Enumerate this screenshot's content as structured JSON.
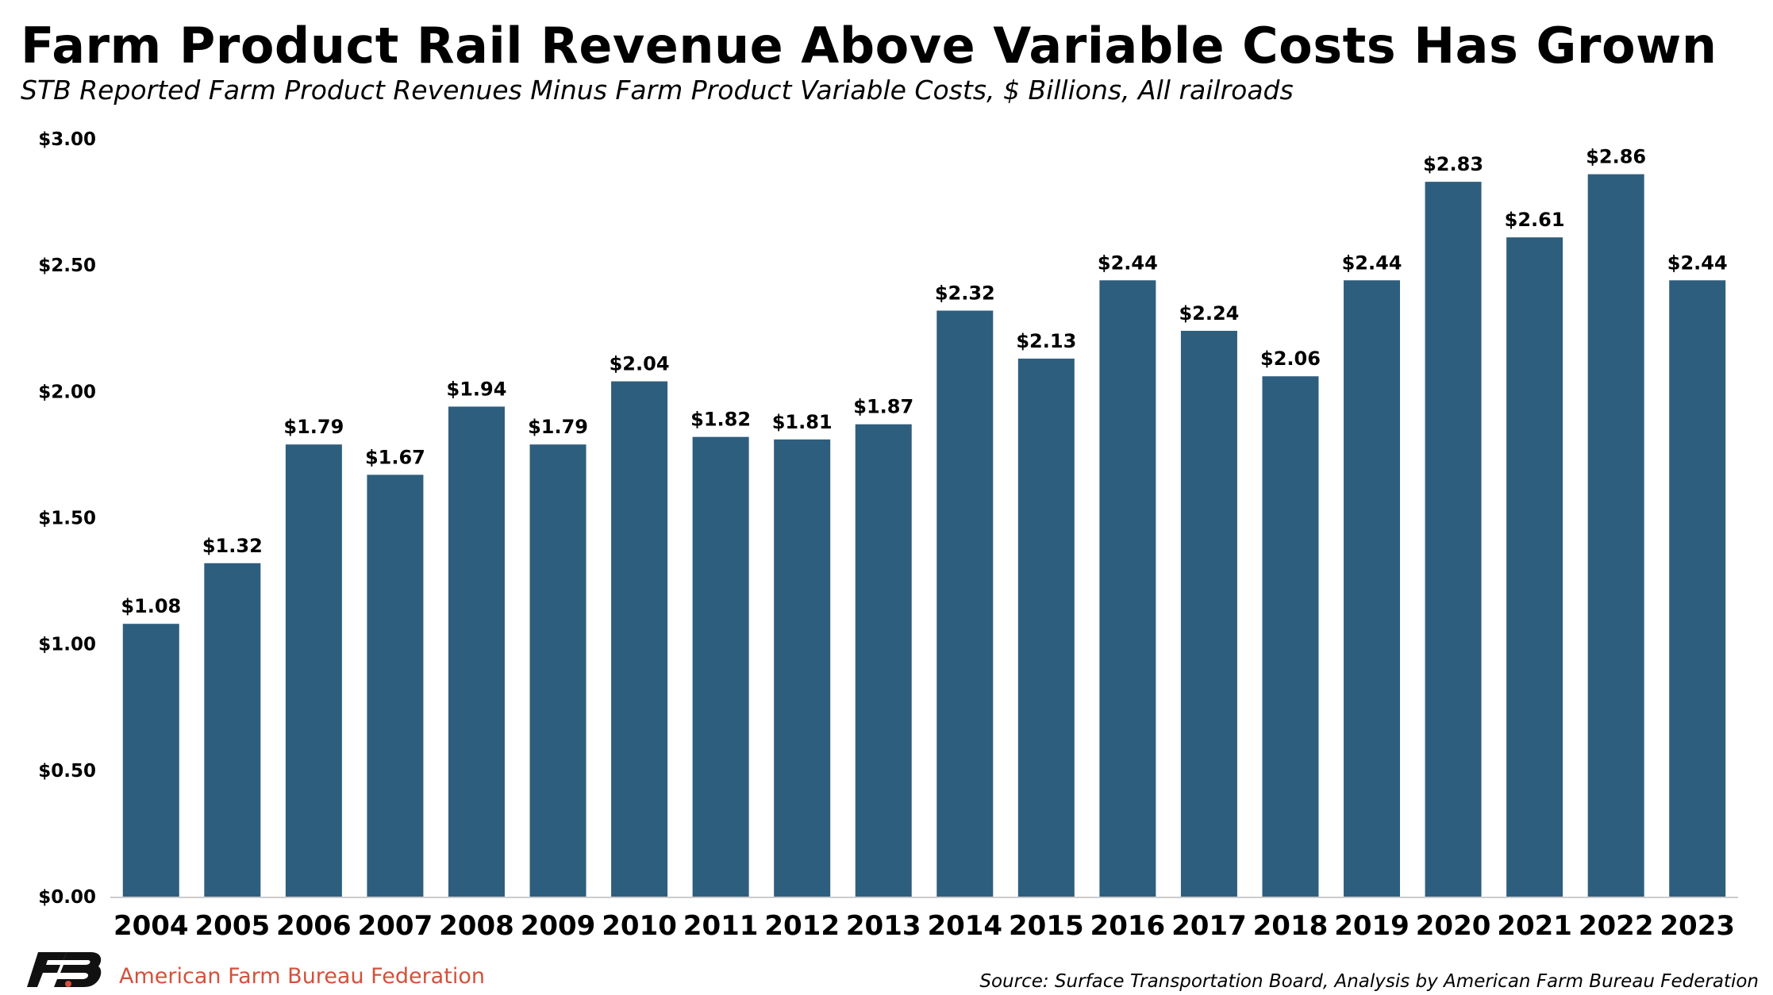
{
  "header": {
    "title": "Farm Product Rail Revenue Above Variable Costs Has Grown",
    "subtitle": "STB Reported Farm Product Revenues Minus Farm Product Variable Costs, $ Billions, All railroads"
  },
  "chart_data": {
    "type": "bar",
    "categories": [
      "2004",
      "2005",
      "2006",
      "2007",
      "2008",
      "2009",
      "2010",
      "2011",
      "2012",
      "2013",
      "2014",
      "2015",
      "2016",
      "2017",
      "2018",
      "2019",
      "2020",
      "2021",
      "2022",
      "2023"
    ],
    "values": [
      1.08,
      1.32,
      1.79,
      1.67,
      1.94,
      1.79,
      2.04,
      1.82,
      1.81,
      1.87,
      2.32,
      2.13,
      2.44,
      2.24,
      2.06,
      2.44,
      2.83,
      2.61,
      2.86,
      2.44
    ],
    "data_labels": [
      "$1.08",
      "$1.32",
      "$1.79",
      "$1.67",
      "$1.94",
      "$1.79",
      "$2.04",
      "$1.82",
      "$1.81",
      "$1.87",
      "$2.32",
      "$2.13",
      "$2.44",
      "$2.24",
      "$2.06",
      "$2.44",
      "$2.83",
      "$2.61",
      "$2.86",
      "$2.44"
    ],
    "ylim": [
      0,
      3
    ],
    "yticks": [
      0,
      0.5,
      1,
      1.5,
      2,
      2.5,
      3
    ],
    "ytick_labels": [
      "$0.00",
      "$0.50",
      "$1.00",
      "$1.50",
      "$2.00",
      "$2.50",
      "$3.00"
    ],
    "grid": false,
    "legend": "none",
    "bar_color": "#2e5e7e"
  },
  "footer": {
    "logo_icon": "fb-logo-icon",
    "organization": "American Farm Bureau Federation",
    "organization_color": "#d4513c",
    "source": "Source: Surface Transportation Board, Analysis by American Farm Bureau Federation"
  }
}
